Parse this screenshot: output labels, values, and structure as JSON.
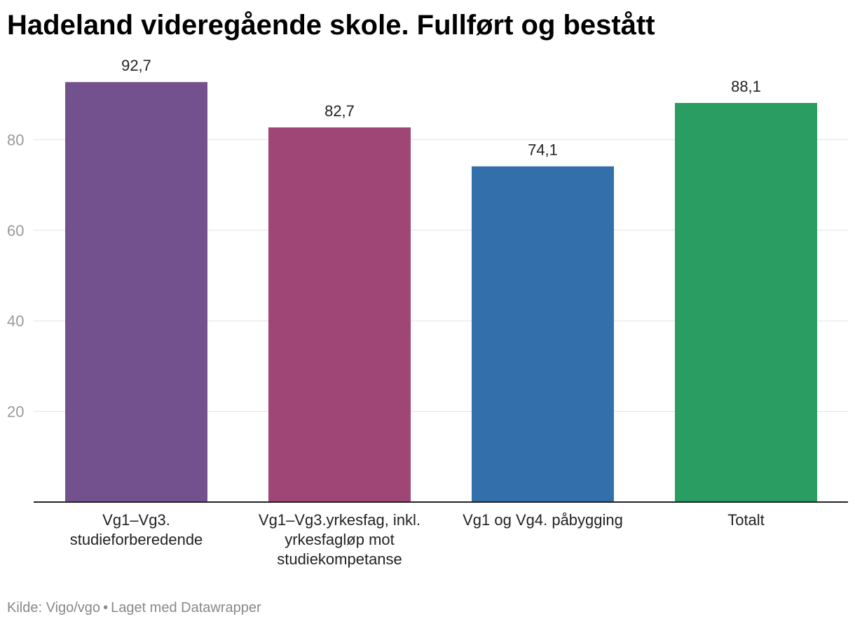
{
  "chart_data": {
    "type": "bar",
    "title": "Hadeland videregående skole. Fullført og bestått",
    "categories": [
      [
        "Vg1–Vg3.",
        "studieforberedende"
      ],
      [
        "Vg1–Vg3.yrkesfag, inkl.",
        "yrkesfagløp mot",
        "studiekompetanse"
      ],
      [
        "Vg1 og Vg4. påbygging"
      ],
      [
        "Totalt"
      ]
    ],
    "values": [
      92.7,
      82.7,
      74.1,
      88.1
    ],
    "value_labels": [
      "92,7",
      "82,7",
      "74,1",
      "88,1"
    ],
    "colors": [
      "#73508e",
      "#a04676",
      "#336fab",
      "#2a9e62"
    ],
    "yticks": [
      "20",
      "40",
      "60",
      "80"
    ],
    "ytick_values": [
      20,
      40,
      60,
      80
    ],
    "ylim": [
      0,
      100
    ],
    "grid": true
  },
  "footer": {
    "source": "Kilde: Vigo/vgo",
    "separator": "•",
    "credit": "Laget med Datawrapper"
  }
}
